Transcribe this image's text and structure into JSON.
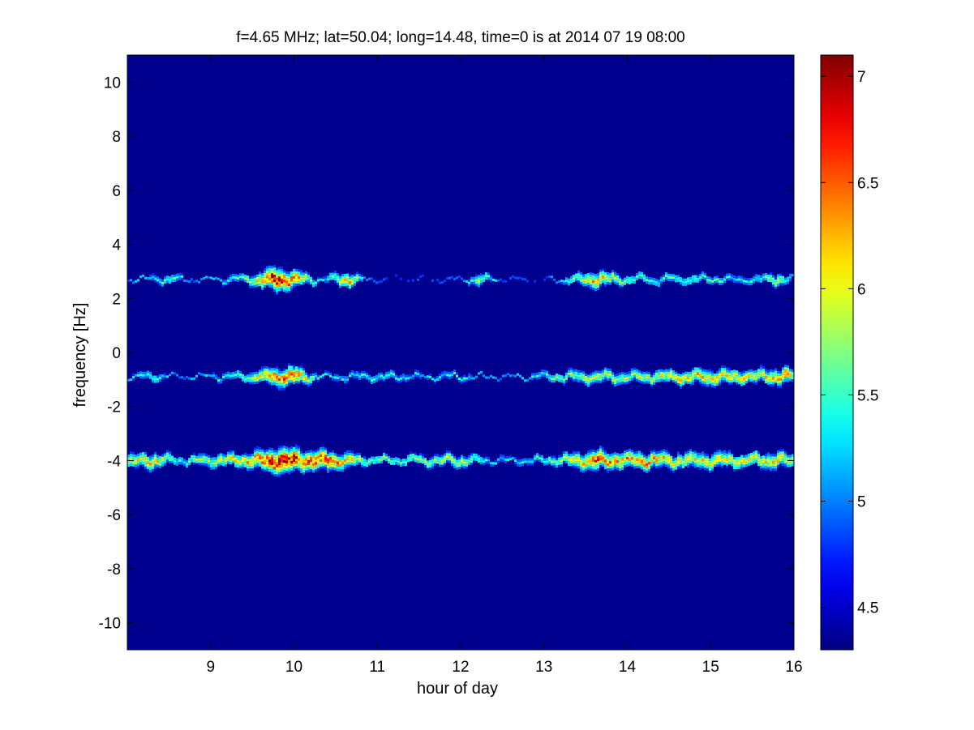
{
  "chart_data": {
    "type": "heatmap",
    "title": "f=4.65 MHz;  lat=50.04; long=14.48, time=0 is at 2014 07 19 08:00",
    "xlabel": "hour of day",
    "ylabel": "frequency [Hz]",
    "xlim": [
      8,
      16
    ],
    "ylim": [
      -11,
      11
    ],
    "xticks": [
      9,
      10,
      11,
      12,
      13,
      14,
      15,
      16
    ],
    "yticks": [
      -10,
      -8,
      -6,
      -4,
      -2,
      0,
      2,
      4,
      6,
      8,
      10
    ],
    "colorbar": {
      "colormap": "jet",
      "range": [
        4.3,
        7.1
      ],
      "ticks": [
        4.5,
        5,
        5.5,
        6,
        6.5,
        7
      ]
    },
    "background_value": 4.3,
    "traces": [
      {
        "frequency": 2.7,
        "intensity": [
          [
            8.0,
            5.0
          ],
          [
            8.5,
            5.6
          ],
          [
            8.8,
            5.0
          ],
          [
            9.2,
            5.4
          ],
          [
            9.5,
            5.8
          ],
          [
            9.75,
            6.9
          ],
          [
            10.0,
            6.4
          ],
          [
            10.3,
            5.2
          ],
          [
            10.65,
            6.2
          ],
          [
            10.9,
            4.9
          ],
          [
            11.5,
            4.8
          ],
          [
            12.0,
            4.9
          ],
          [
            12.2,
            5.9
          ],
          [
            12.5,
            4.8
          ],
          [
            13.0,
            4.8
          ],
          [
            13.4,
            5.8
          ],
          [
            13.6,
            6.3
          ],
          [
            13.9,
            5.7
          ],
          [
            14.3,
            5.5
          ],
          [
            14.8,
            5.6
          ],
          [
            15.2,
            5.4
          ],
          [
            15.6,
            5.5
          ],
          [
            15.8,
            5.9
          ],
          [
            16.0,
            5.2
          ]
        ]
      },
      {
        "frequency": -0.9,
        "intensity": [
          [
            8.0,
            5.2
          ],
          [
            8.3,
            5.6
          ],
          [
            8.6,
            4.9
          ],
          [
            9.0,
            5.3
          ],
          [
            9.4,
            5.6
          ],
          [
            9.75,
            6.4
          ],
          [
            10.0,
            6.5
          ],
          [
            10.3,
            5.3
          ],
          [
            10.7,
            5.4
          ],
          [
            11.0,
            5.5
          ],
          [
            11.5,
            5.3
          ],
          [
            12.0,
            5.4
          ],
          [
            12.5,
            5.0
          ],
          [
            13.0,
            5.5
          ],
          [
            13.5,
            5.9
          ],
          [
            14.0,
            5.8
          ],
          [
            14.5,
            6.0
          ],
          [
            15.0,
            6.2
          ],
          [
            15.5,
            6.0
          ],
          [
            15.9,
            6.3
          ],
          [
            16.0,
            5.7
          ]
        ]
      },
      {
        "frequency": -4.0,
        "intensity": [
          [
            8.0,
            6.0
          ],
          [
            8.3,
            6.2
          ],
          [
            8.6,
            5.5
          ],
          [
            9.0,
            5.9
          ],
          [
            9.4,
            6.1
          ],
          [
            9.7,
            6.8
          ],
          [
            9.85,
            7.1
          ],
          [
            10.1,
            6.6
          ],
          [
            10.35,
            6.6
          ],
          [
            10.6,
            6.2
          ],
          [
            10.9,
            5.6
          ],
          [
            11.5,
            5.7
          ],
          [
            12.0,
            5.9
          ],
          [
            12.4,
            5.3
          ],
          [
            12.8,
            5.4
          ],
          [
            13.2,
            5.8
          ],
          [
            13.6,
            6.6
          ],
          [
            13.8,
            6.3
          ],
          [
            14.2,
            6.3
          ],
          [
            14.6,
            6.1
          ],
          [
            15.0,
            6.2
          ],
          [
            15.4,
            6.0
          ],
          [
            15.8,
            6.2
          ],
          [
            16.0,
            5.9
          ]
        ]
      }
    ]
  }
}
